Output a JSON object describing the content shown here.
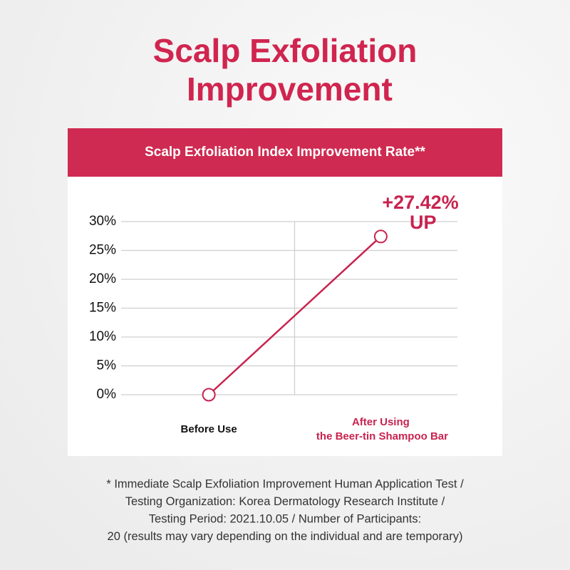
{
  "title": "Scalp Exfoliation\nImprovement",
  "chart_data": {
    "type": "line",
    "title": "Scalp Exfoliation Index Improvement Rate**",
    "categories": [
      "Before Use",
      "After Using\nthe Beer-tin Shampoo Bar"
    ],
    "category_label_colors": [
      "#111111",
      "#c8234f"
    ],
    "values": [
      0,
      27.42
    ],
    "color": "#c8234f",
    "annotation": "+27.42%\nUP",
    "ylim": [
      0,
      30
    ],
    "yticks": [
      {
        "value": 0,
        "label": "0%"
      },
      {
        "value": 5,
        "label": "5%"
      },
      {
        "value": 10,
        "label": "10%"
      },
      {
        "value": 15,
        "label": "15%"
      },
      {
        "value": 20,
        "label": "20%"
      },
      {
        "value": 25,
        "label": "25%"
      },
      {
        "value": 30,
        "label": "30%"
      }
    ],
    "grid": true
  },
  "footnote": [
    "* Immediate Scalp Exfoliation Improvement Human Application Test /",
    "Testing Organization: Korea Dermatology Research Institute /",
    "Testing Period: 2021.10.05 / Number of Participants:",
    "20 (results may vary depending on the individual and are temporary)"
  ]
}
